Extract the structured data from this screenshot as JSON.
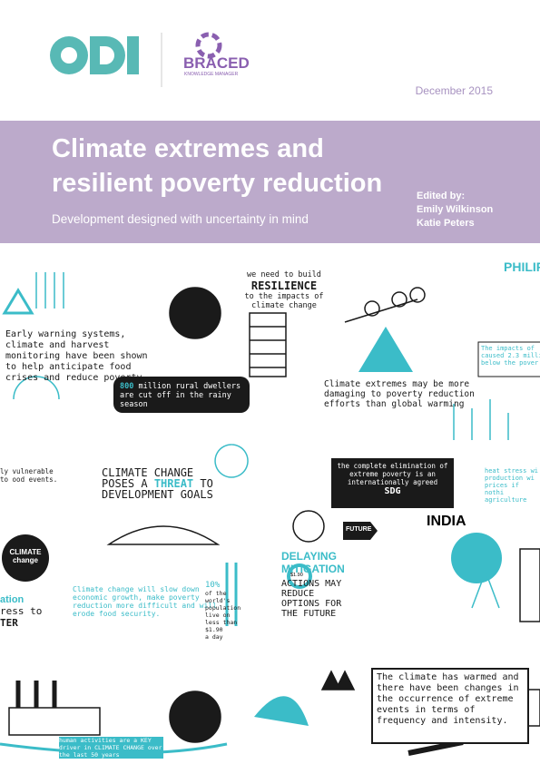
{
  "header": {
    "partner_logo": "BRACED",
    "partner_subtitle": "KNOWLEDGE MANAGER",
    "date": "December 2015"
  },
  "title_band": {
    "title_lines": [
      "Climate extremes and",
      "resilient poverty reduction"
    ],
    "subtitle": "Development designed with uncertainty in mind",
    "edited_by": "Edited by:",
    "editors": [
      "Emily Wilkinson",
      "Katie Peters"
    ]
  },
  "illustration": {
    "early_warning": "Early warning systems, climate and harvest monitoring have been shown to help anticipate food crises and reduce poverty",
    "resilience": [
      "we need to build",
      "RESILIENCE",
      "to the impacts of climate change"
    ],
    "rural": [
      "800",
      "million rural dwellers are cut off in the rainy season"
    ],
    "extremes": "Climate extremes may be more damaging to poverty reduction efforts than global warming",
    "philippines": "PHILIP",
    "impacts": "The impacts of caused 2.3 milli below the pover",
    "threat": [
      "CLIMATE CHANGE",
      "POSES A",
      "THREAT",
      "TO",
      "DEVELOPMENT GOALS"
    ],
    "sdg": [
      "the complete elimination of extreme poverty is an internationally agreed",
      "SDG"
    ],
    "heat": "heat stress wi production wi prices if nothi agriculture",
    "vulnerable": "ly vulnerable to ood events.",
    "future": "FUTURE",
    "india": "INDIA",
    "climate_badge": [
      "CLIMATE",
      "change"
    ],
    "slowdown": "Climate change will slow down economic growth, make poverty reduction more difficult and will erode food security.",
    "delaying": [
      "DELAYING",
      "MITIGATION"
    ],
    "actions": "ACTIONS MAY REDUCE OPTIONS FOR THE FUTURE",
    "population": [
      "10%",
      "of the world's population live on less than",
      "$1.90",
      "a day"
    ],
    "coin": "$1.90",
    "warmed": "The climate has warmed and there have been changes in the occurrence of extreme events in terms of frequency and intensity.",
    "human": "human activities are a KEY driver in CLIMATE CHANGE over the last 50 years",
    "left_cut": [
      "ation",
      "ress to",
      "TER"
    ]
  }
}
